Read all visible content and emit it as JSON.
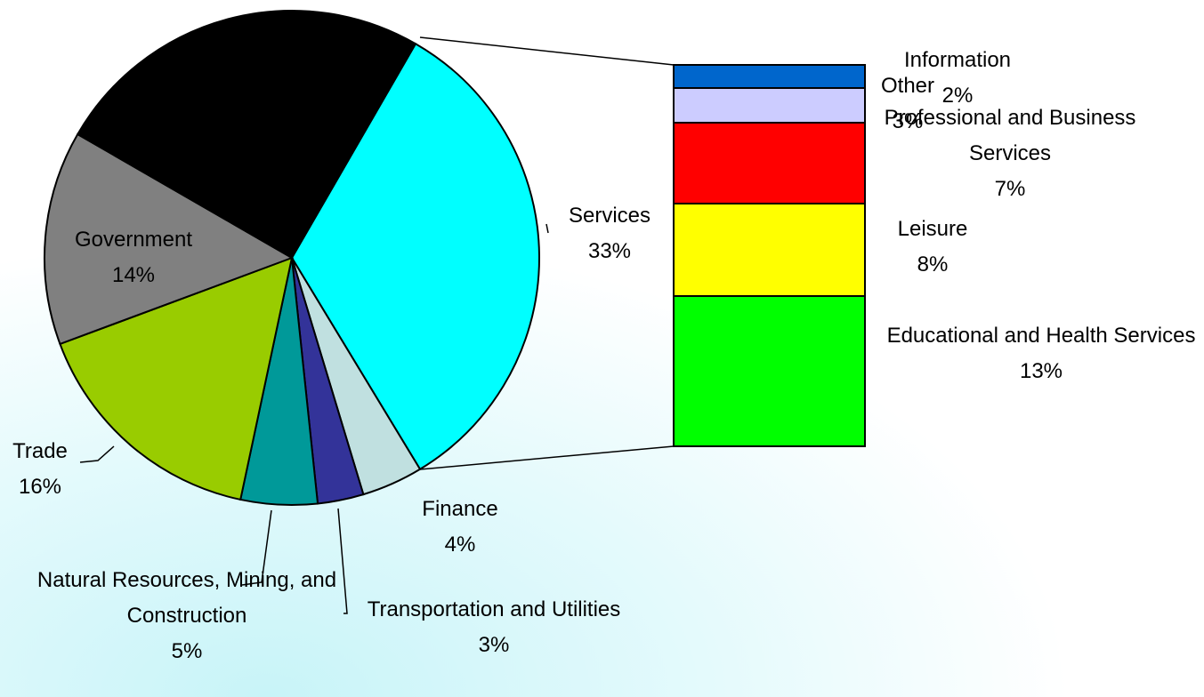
{
  "chart_data": {
    "type": "pie",
    "categories": [
      "Services",
      "Finance",
      "Transportation and Utilities",
      "Natural Resources, Mining, and Construction",
      "Trade",
      "Government",
      null
    ],
    "values": [
      33,
      4,
      3,
      5,
      16,
      14,
      25
    ],
    "value_labels": [
      "33%",
      "4%",
      "3%",
      "5%",
      "16%",
      "14%",
      null
    ],
    "colors": [
      "#00ffff",
      "#c0e0e0",
      "#333399",
      "#009999",
      "#99cc00",
      "#808080",
      "#000000"
    ],
    "breakdown": {
      "categories": [
        "Educational and Health Services",
        "Leisure",
        "Professional and Business Services",
        "Other",
        "Information"
      ],
      "values": [
        13,
        8,
        7,
        3,
        2
      ],
      "value_labels": [
        "13%",
        "8%",
        "7%",
        "3%",
        "2%"
      ],
      "colors": [
        "#00ff00",
        "#ffff00",
        "#ff0000",
        "#ccccff",
        "#0066cc"
      ]
    }
  }
}
